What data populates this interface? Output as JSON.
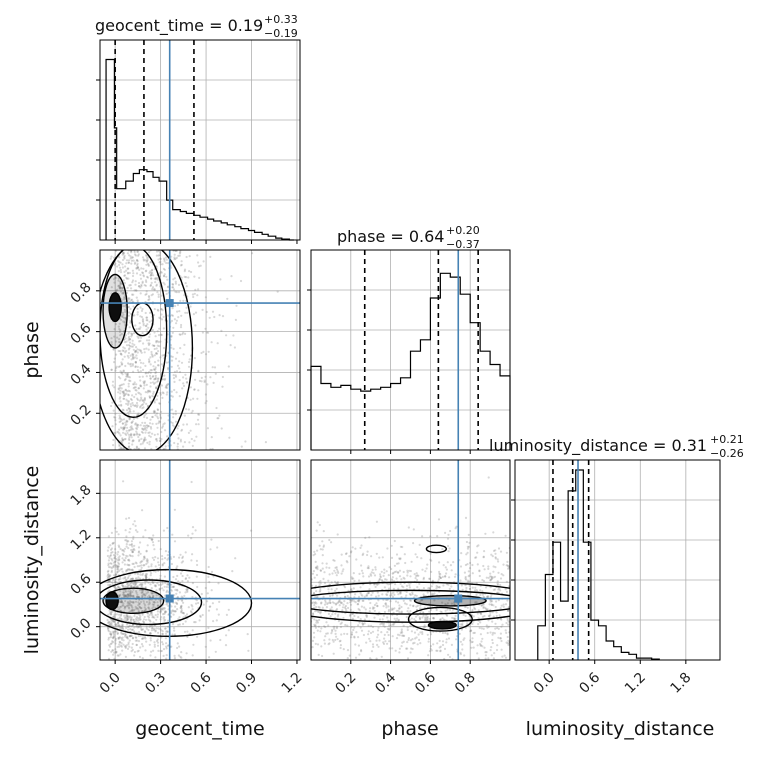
{
  "chart_data": {
    "type": "corner",
    "parameters": [
      "geocent_time",
      "phase",
      "luminosity_distance"
    ],
    "truth": {
      "geocent_time": 0.36,
      "phase": 0.74,
      "luminosity_distance": 0.38
    },
    "panels": {
      "geocent_time": {
        "title": {
          "label": "geocent_time = 0.19",
          "plus": "+0.33",
          "minus": "−0.19"
        },
        "xlim": [
          -0.1,
          1.22
        ],
        "quantiles": [
          0.0,
          0.19,
          0.52
        ],
        "hist": {
          "edges": [
            -0.06,
            -0.005,
            0.01,
            0.07,
            0.12,
            0.16,
            0.21,
            0.25,
            0.29,
            0.34,
            0.38,
            0.43,
            0.47,
            0.52,
            0.56,
            0.61,
            0.65,
            0.7,
            0.74,
            0.79,
            0.83,
            0.88,
            0.92,
            0.97,
            1.01,
            1.06,
            1.1,
            1.15,
            1.18
          ],
          "values": [
            0.95,
            0.59,
            0.27,
            0.31,
            0.35,
            0.37,
            0.36,
            0.33,
            0.31,
            0.21,
            0.16,
            0.15,
            0.14,
            0.13,
            0.12,
            0.11,
            0.1,
            0.09,
            0.08,
            0.07,
            0.06,
            0.05,
            0.04,
            0.03,
            0.02,
            0.01,
            0.005,
            0.0
          ],
          "ymax": 1.0
        },
        "xticks": [
          "0.0",
          "0.3",
          "0.6",
          "0.9",
          "1.2"
        ],
        "xtick_values": [
          0.0,
          0.3,
          0.6,
          0.9,
          1.2
        ]
      },
      "phase": {
        "title": {
          "label": "phase = 0.64",
          "plus": "+0.20",
          "minus": "−0.37"
        },
        "xlim": [
          0.0,
          1.0
        ],
        "ylim": [
          0.02,
          1.0
        ],
        "quantiles": [
          0.27,
          0.64,
          0.84
        ],
        "hist": {
          "edges": [
            0.0,
            0.05,
            0.1,
            0.15,
            0.2,
            0.25,
            0.3,
            0.35,
            0.4,
            0.45,
            0.5,
            0.55,
            0.6,
            0.65,
            0.7,
            0.75,
            0.8,
            0.85,
            0.9,
            0.95,
            1.0
          ],
          "values": [
            0.44,
            0.35,
            0.33,
            0.34,
            0.32,
            0.31,
            0.32,
            0.33,
            0.35,
            0.38,
            0.52,
            0.58,
            0.8,
            0.93,
            0.91,
            0.82,
            0.67,
            0.52,
            0.45,
            0.39
          ],
          "ymax": 1.0
        },
        "xticks": [
          "0.2",
          "0.4",
          "0.6",
          "0.8"
        ],
        "xtick_values": [
          0.2,
          0.4,
          0.6,
          0.8
        ],
        "yticks": [
          "0.2",
          "0.4",
          "0.6",
          "0.8"
        ],
        "ytick_values": [
          0.2,
          0.4,
          0.6,
          0.8
        ]
      },
      "luminosity_distance": {
        "title": {
          "label": "luminosity_distance = 0.31",
          "plus": "+0.21",
          "minus": "−0.26"
        },
        "xlim": [
          -0.45,
          2.25
        ],
        "ylim": [
          -0.45,
          2.25
        ],
        "quantiles": [
          0.05,
          0.31,
          0.52
        ],
        "hist": {
          "edges": [
            -0.15,
            -0.05,
            0.05,
            0.15,
            0.25,
            0.35,
            0.45,
            0.55,
            0.65,
            0.75,
            0.85,
            0.95,
            1.05,
            1.15,
            1.25,
            1.35,
            1.45
          ],
          "values": [
            0.18,
            0.45,
            0.62,
            0.31,
            0.89,
            1.0,
            0.62,
            0.21,
            0.18,
            0.1,
            0.07,
            0.04,
            0.03,
            0.01,
            0.01,
            0.005
          ],
          "ymax": 1.0
        },
        "xticks": [
          "0.0",
          "0.6",
          "1.2",
          "1.8"
        ],
        "xtick_values": [
          0.0,
          0.6,
          1.2,
          1.8
        ],
        "yticks": [
          "0.0",
          "0.6",
          "1.2",
          "1.8"
        ],
        "ytick_values": [
          0.0,
          0.6,
          1.2,
          1.8
        ]
      }
    },
    "scatter": {
      "geocent_time_vs_phase": {
        "x_center": 0.35,
        "x_spread": 0.28,
        "y_range": [
          0.02,
          1.0
        ]
      },
      "geocent_time_vs_luminosity_distance": {
        "x_center": 0.3,
        "x_spread": 0.28,
        "y_center": 0.35,
        "y_spread": 0.45
      },
      "phase_vs_luminosity_distance": {
        "x_range": [
          0.0,
          1.0
        ],
        "y_center": 0.3,
        "y_spread": 0.4
      }
    },
    "colors": {
      "truth": "#4682b4",
      "hist": "#000000",
      "grid": "#b0b0b0",
      "points": "#7f7f7f"
    }
  }
}
